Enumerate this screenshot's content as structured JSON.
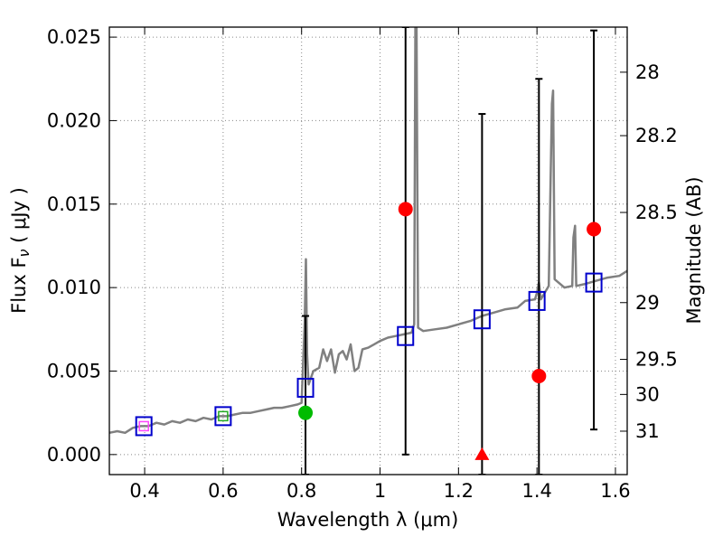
{
  "chart_data": {
    "type": "scatter",
    "title": "",
    "xlabel": "Wavelength  λ (μm)",
    "ylabel": "Flux  F",
    "ylabel_sub": "ν",
    "ylabel_unit": "  ( μJy )",
    "ylabel_right": "Magnitude (AB)",
    "xlim": [
      0.31,
      1.63
    ],
    "ylim": [
      -0.0012,
      0.0256
    ],
    "grid": true,
    "x_ticks": [
      0.4,
      0.6,
      0.8,
      1.0,
      1.2,
      1.4,
      1.6
    ],
    "x_tick_labels": [
      "0.4",
      "0.6",
      "0.8",
      "1",
      "1.2",
      "1.4",
      "1.6"
    ],
    "y_ticks": [
      0.0,
      0.005,
      0.01,
      0.015,
      0.02,
      0.025
    ],
    "y_tick_labels": [
      "0.000",
      "0.005",
      "0.010",
      "0.015",
      "0.020",
      "0.025"
    ],
    "right_ticks": [
      {
        "label": "28",
        "flux": 0.0229
      },
      {
        "label": "28.2",
        "flux": 0.0191
      },
      {
        "label": "28.5",
        "flux": 0.0145
      },
      {
        "label": "29",
        "flux": 0.0091
      },
      {
        "label": "29.5",
        "flux": 0.0057
      },
      {
        "label": "30",
        "flux": 0.0036
      },
      {
        "label": "31",
        "flux": 0.0014
      }
    ],
    "colors": {
      "spectrum": "#808080",
      "model": "#0000cc",
      "detection": "#ff0000",
      "green_detection": "#00bb00",
      "errorbar": "#000000",
      "grid": "#888888"
    },
    "series": [
      {
        "name": "template spectrum",
        "kind": "line",
        "points": [
          [
            0.31,
            0.0013
          ],
          [
            0.33,
            0.0014
          ],
          [
            0.35,
            0.0013
          ],
          [
            0.37,
            0.0016
          ],
          [
            0.39,
            0.0017
          ],
          [
            0.41,
            0.0017
          ],
          [
            0.43,
            0.0019
          ],
          [
            0.45,
            0.0018
          ],
          [
            0.47,
            0.002
          ],
          [
            0.49,
            0.0019
          ],
          [
            0.51,
            0.0021
          ],
          [
            0.53,
            0.002
          ],
          [
            0.55,
            0.0022
          ],
          [
            0.57,
            0.0021
          ],
          [
            0.59,
            0.0023
          ],
          [
            0.61,
            0.0023
          ],
          [
            0.63,
            0.0024
          ],
          [
            0.65,
            0.0025
          ],
          [
            0.67,
            0.0025
          ],
          [
            0.69,
            0.0026
          ],
          [
            0.71,
            0.0027
          ],
          [
            0.73,
            0.0028
          ],
          [
            0.75,
            0.0028
          ],
          [
            0.77,
            0.0029
          ],
          [
            0.79,
            0.003
          ],
          [
            0.8,
            0.0031
          ],
          [
            0.808,
            0.008
          ],
          [
            0.811,
            0.0117
          ],
          [
            0.814,
            0.006
          ],
          [
            0.818,
            0.0042
          ],
          [
            0.83,
            0.005
          ],
          [
            0.845,
            0.0052
          ],
          [
            0.855,
            0.0063
          ],
          [
            0.865,
            0.0056
          ],
          [
            0.875,
            0.0063
          ],
          [
            0.885,
            0.0049
          ],
          [
            0.895,
            0.006
          ],
          [
            0.905,
            0.0062
          ],
          [
            0.915,
            0.0057
          ],
          [
            0.925,
            0.0066
          ],
          [
            0.935,
            0.005
          ],
          [
            0.945,
            0.0052
          ],
          [
            0.955,
            0.0063
          ],
          [
            0.97,
            0.0064
          ],
          [
            0.985,
            0.0066
          ],
          [
            1.0,
            0.0068
          ],
          [
            1.02,
            0.007
          ],
          [
            1.04,
            0.0071
          ],
          [
            1.06,
            0.0072
          ],
          [
            1.08,
            0.0073
          ],
          [
            1.087,
            0.0078
          ],
          [
            1.09,
            0.0256
          ],
          [
            1.093,
            0.0256
          ],
          [
            1.097,
            0.0076
          ],
          [
            1.11,
            0.0074
          ],
          [
            1.14,
            0.0075
          ],
          [
            1.17,
            0.0076
          ],
          [
            1.2,
            0.0078
          ],
          [
            1.23,
            0.008
          ],
          [
            1.26,
            0.0083
          ],
          [
            1.29,
            0.0085
          ],
          [
            1.32,
            0.0087
          ],
          [
            1.35,
            0.0088
          ],
          [
            1.37,
            0.0092
          ],
          [
            1.395,
            0.0093
          ],
          [
            1.4,
            0.0097
          ],
          [
            1.405,
            0.0103
          ],
          [
            1.41,
            0.0093
          ],
          [
            1.43,
            0.0101
          ],
          [
            1.438,
            0.021
          ],
          [
            1.441,
            0.0218
          ],
          [
            1.445,
            0.0105
          ],
          [
            1.47,
            0.01
          ],
          [
            1.49,
            0.0101
          ],
          [
            1.493,
            0.013
          ],
          [
            1.497,
            0.0137
          ],
          [
            1.5,
            0.0101
          ],
          [
            1.52,
            0.0102
          ],
          [
            1.55,
            0.0104
          ],
          [
            1.58,
            0.0106
          ],
          [
            1.61,
            0.0107
          ],
          [
            1.63,
            0.011
          ]
        ]
      },
      {
        "name": "model photometry",
        "kind": "open-square",
        "points": [
          [
            0.398,
            0.0017
          ],
          [
            0.6,
            0.0023
          ],
          [
            0.81,
            0.004
          ],
          [
            1.065,
            0.0071
          ],
          [
            1.26,
            0.0081
          ],
          [
            1.4,
            0.0092
          ],
          [
            1.545,
            0.0103
          ]
        ]
      },
      {
        "name": "observed flux",
        "kind": "filled-circle",
        "points": [
          [
            1.065,
            0.0147
          ],
          [
            1.405,
            0.0047
          ],
          [
            1.545,
            0.0135
          ]
        ]
      },
      {
        "name": "observed flux (green)",
        "kind": "filled-circle",
        "points": [
          [
            0.81,
            0.0025
          ]
        ]
      },
      {
        "name": "upper limit",
        "kind": "triangle",
        "points": [
          [
            1.26,
            0.0
          ]
        ]
      },
      {
        "name": "error bars",
        "kind": "errorbar",
        "points": [
          {
            "x": 0.81,
            "low": -0.0012,
            "high": 0.0083
          },
          {
            "x": 1.065,
            "low": 0.0,
            "high": 0.0256
          },
          {
            "x": 1.26,
            "low": -0.0012,
            "high": 0.0204
          },
          {
            "x": 1.405,
            "low": -0.0012,
            "high": 0.0225
          },
          {
            "x": 1.545,
            "low": 0.0015,
            "high": 0.0254
          }
        ]
      }
    ],
    "small_markers": [
      {
        "x": 0.398,
        "y": 0.0017,
        "color": "#ff44ff",
        "kind": "square"
      },
      {
        "x": 0.6,
        "y": 0.0023,
        "color": "#22aa22",
        "kind": "square"
      }
    ]
  }
}
